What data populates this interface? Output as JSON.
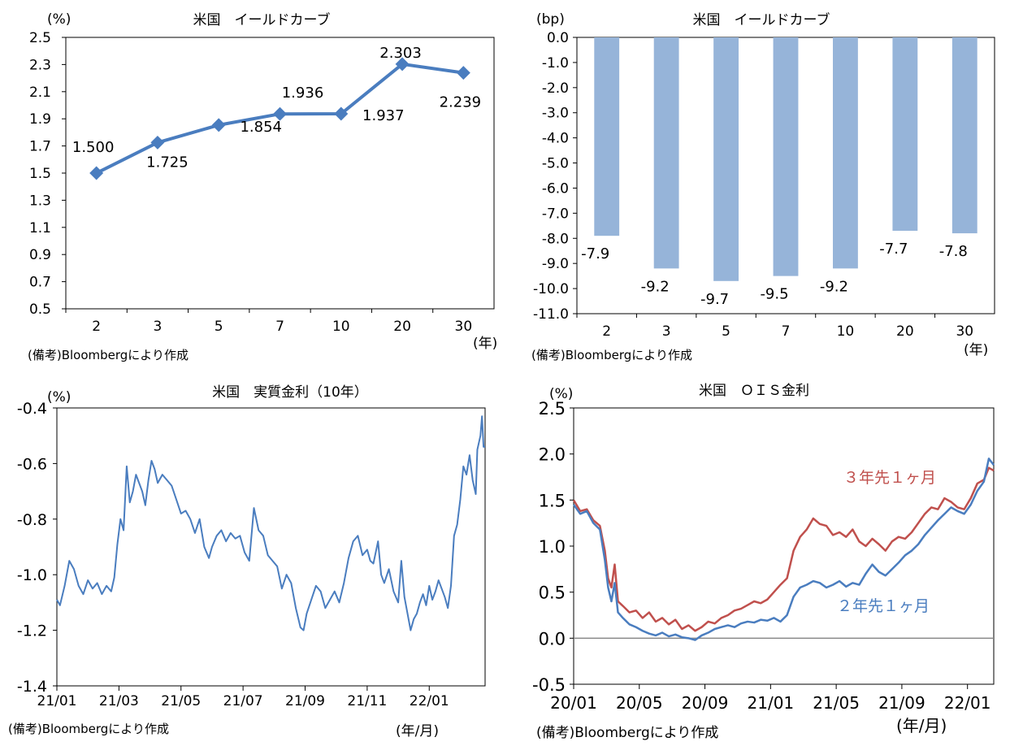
{
  "chart_data": [
    {
      "type": "line",
      "title": "米国　イールドカーブ",
      "ylabel": "(%)",
      "xlabel": "(年)",
      "note": "(備考)Bloombergにより作成",
      "categories": [
        "2",
        "3",
        "5",
        "7",
        "10",
        "20",
        "30"
      ],
      "values": [
        1.5,
        1.725,
        1.854,
        1.936,
        1.937,
        2.303,
        2.239
      ],
      "value_labels": [
        "1.500",
        "1.725",
        "1.854",
        "1.936",
        "1.937",
        "2.303",
        "2.239"
      ],
      "ylim": [
        0.5,
        2.5
      ],
      "yticks": [
        "2.5",
        "2.3",
        "2.1",
        "1.9",
        "1.7",
        "1.5",
        "1.3",
        "1.1",
        "0.9",
        "0.7",
        "0.5"
      ],
      "color": "#4a7dbf"
    },
    {
      "type": "bar",
      "title": "米国　イールドカーブ",
      "ylabel": "(bp)",
      "xlabel": "(年)",
      "note": "(備考)Bloombergにより作成",
      "categories": [
        "2",
        "3",
        "5",
        "7",
        "10",
        "20",
        "30"
      ],
      "values": [
        -7.9,
        -9.2,
        -9.7,
        -9.5,
        -9.2,
        -7.7,
        -7.8
      ],
      "value_labels": [
        "-7.9",
        "-9.2",
        "-9.7",
        "-9.5",
        "-9.2",
        "-7.7",
        "-7.8"
      ],
      "ylim": [
        -11.0,
        0.0
      ],
      "yticks": [
        "0.0",
        "-1.0",
        "-2.0",
        "-3.0",
        "-4.0",
        "-5.0",
        "-6.0",
        "-7.0",
        "-8.0",
        "-9.0",
        "-10.0",
        "-11.0"
      ],
      "color": "#96b4d9"
    },
    {
      "type": "line",
      "title": "米国　実質金利（10年）",
      "ylabel": "(%)",
      "xlabel": "(年/月)",
      "note": "(備考)Bloombergにより作成",
      "ylim": [
        -1.4,
        -0.4
      ],
      "yticks": [
        "-0.4",
        "-0.6",
        "-0.8",
        "-1.0",
        "-1.2",
        "-1.4"
      ],
      "xticks": [
        "21/01",
        "21/03",
        "21/05",
        "21/07",
        "21/09",
        "21/11",
        "22/01"
      ],
      "x_range_months": [
        0,
        13.8
      ],
      "series": [
        {
          "name": "実質金利（10年）",
          "color": "#4a7dbf",
          "points": [
            [
              0,
              -1.09
            ],
            [
              0.1,
              -1.11
            ],
            [
              0.25,
              -1.04
            ],
            [
              0.4,
              -0.95
            ],
            [
              0.55,
              -0.98
            ],
            [
              0.7,
              -1.04
            ],
            [
              0.85,
              -1.07
            ],
            [
              1.0,
              -1.02
            ],
            [
              1.15,
              -1.05
            ],
            [
              1.3,
              -1.03
            ],
            [
              1.45,
              -1.07
            ],
            [
              1.6,
              -1.04
            ],
            [
              1.75,
              -1.06
            ],
            [
              1.85,
              -1.01
            ],
            [
              1.95,
              -0.89
            ],
            [
              2.05,
              -0.8
            ],
            [
              2.15,
              -0.84
            ],
            [
              2.25,
              -0.61
            ],
            [
              2.35,
              -0.74
            ],
            [
              2.45,
              -0.7
            ],
            [
              2.55,
              -0.64
            ],
            [
              2.65,
              -0.67
            ],
            [
              2.75,
              -0.7
            ],
            [
              2.85,
              -0.75
            ],
            [
              2.95,
              -0.66
            ],
            [
              3.05,
              -0.59
            ],
            [
              3.15,
              -0.62
            ],
            [
              3.25,
              -0.67
            ],
            [
              3.4,
              -0.64
            ],
            [
              3.55,
              -0.66
            ],
            [
              3.7,
              -0.68
            ],
            [
              3.85,
              -0.73
            ],
            [
              4.0,
              -0.78
            ],
            [
              4.15,
              -0.77
            ],
            [
              4.3,
              -0.8
            ],
            [
              4.45,
              -0.85
            ],
            [
              4.6,
              -0.8
            ],
            [
              4.75,
              -0.9
            ],
            [
              4.9,
              -0.94
            ],
            [
              5.0,
              -0.9
            ],
            [
              5.15,
              -0.86
            ],
            [
              5.3,
              -0.84
            ],
            [
              5.45,
              -0.88
            ],
            [
              5.6,
              -0.85
            ],
            [
              5.75,
              -0.87
            ],
            [
              5.9,
              -0.86
            ],
            [
              6.05,
              -0.92
            ],
            [
              6.2,
              -0.95
            ],
            [
              6.35,
              -0.76
            ],
            [
              6.5,
              -0.84
            ],
            [
              6.65,
              -0.86
            ],
            [
              6.8,
              -0.93
            ],
            [
              6.95,
              -0.95
            ],
            [
              7.1,
              -0.97
            ],
            [
              7.25,
              -1.05
            ],
            [
              7.4,
              -1.0
            ],
            [
              7.55,
              -1.03
            ],
            [
              7.7,
              -1.12
            ],
            [
              7.85,
              -1.19
            ],
            [
              7.95,
              -1.2
            ],
            [
              8.05,
              -1.14
            ],
            [
              8.2,
              -1.09
            ],
            [
              8.35,
              -1.04
            ],
            [
              8.5,
              -1.06
            ],
            [
              8.65,
              -1.12
            ],
            [
              8.8,
              -1.09
            ],
            [
              8.95,
              -1.06
            ],
            [
              9.1,
              -1.1
            ],
            [
              9.25,
              -1.03
            ],
            [
              9.4,
              -0.94
            ],
            [
              9.55,
              -0.88
            ],
            [
              9.7,
              -0.86
            ],
            [
              9.85,
              -0.93
            ],
            [
              10.0,
              -0.91
            ],
            [
              10.1,
              -0.95
            ],
            [
              10.2,
              -0.96
            ],
            [
              10.35,
              -0.88
            ],
            [
              10.45,
              -1.0
            ],
            [
              10.55,
              -1.03
            ],
            [
              10.7,
              -0.98
            ],
            [
              10.85,
              -1.06
            ],
            [
              11.0,
              -1.1
            ],
            [
              11.1,
              -0.95
            ],
            [
              11.2,
              -1.08
            ],
            [
              11.3,
              -1.14
            ],
            [
              11.4,
              -1.2
            ],
            [
              11.5,
              -1.16
            ],
            [
              11.6,
              -1.14
            ],
            [
              11.7,
              -1.1
            ],
            [
              11.8,
              -1.07
            ],
            [
              11.9,
              -1.11
            ],
            [
              12.0,
              -1.04
            ],
            [
              12.1,
              -1.09
            ],
            [
              12.2,
              -1.06
            ],
            [
              12.3,
              -1.02
            ],
            [
              12.4,
              -1.05
            ],
            [
              12.5,
              -1.08
            ],
            [
              12.6,
              -1.12
            ],
            [
              12.7,
              -1.04
            ],
            [
              12.8,
              -0.86
            ],
            [
              12.9,
              -0.82
            ],
            [
              13.0,
              -0.73
            ],
            [
              13.1,
              -0.61
            ],
            [
              13.2,
              -0.64
            ],
            [
              13.3,
              -0.57
            ],
            [
              13.4,
              -0.66
            ],
            [
              13.5,
              -0.71
            ],
            [
              13.55,
              -0.55
            ],
            [
              13.65,
              -0.5
            ],
            [
              13.7,
              -0.43
            ],
            [
              13.75,
              -0.54
            ],
            [
              13.8,
              -0.54
            ]
          ]
        }
      ]
    },
    {
      "type": "line",
      "title": "米国　ＯＩＳ金利",
      "ylabel": "(%)",
      "xlabel": "(年/月)",
      "note": "(備考)Bloombergにより作成",
      "ylim": [
        -0.5,
        2.5
      ],
      "yticks": [
        "2.5",
        "2.0",
        "1.5",
        "1.0",
        "0.5",
        "0.0",
        "-0.5"
      ],
      "xticks": [
        "20/01",
        "20/05",
        "20/09",
        "21/01",
        "21/05",
        "21/09",
        "22/01"
      ],
      "x_range_months": [
        0,
        25.6
      ],
      "series": [
        {
          "name": "３年先１ヶ月",
          "color": "#c0504d",
          "points": [
            [
              0,
              1.5
            ],
            [
              0.4,
              1.38
            ],
            [
              0.8,
              1.4
            ],
            [
              1.2,
              1.28
            ],
            [
              1.6,
              1.22
            ],
            [
              1.9,
              0.95
            ],
            [
              2.1,
              0.65
            ],
            [
              2.3,
              0.55
            ],
            [
              2.5,
              0.8
            ],
            [
              2.7,
              0.4
            ],
            [
              3.0,
              0.35
            ],
            [
              3.4,
              0.28
            ],
            [
              3.8,
              0.3
            ],
            [
              4.2,
              0.22
            ],
            [
              4.6,
              0.28
            ],
            [
              5.0,
              0.18
            ],
            [
              5.4,
              0.22
            ],
            [
              5.8,
              0.15
            ],
            [
              6.2,
              0.2
            ],
            [
              6.6,
              0.1
            ],
            [
              7.0,
              0.14
            ],
            [
              7.4,
              0.08
            ],
            [
              7.8,
              0.12
            ],
            [
              8.2,
              0.18
            ],
            [
              8.6,
              0.16
            ],
            [
              9.0,
              0.22
            ],
            [
              9.4,
              0.25
            ],
            [
              9.8,
              0.3
            ],
            [
              10.2,
              0.32
            ],
            [
              10.6,
              0.36
            ],
            [
              11.0,
              0.4
            ],
            [
              11.4,
              0.38
            ],
            [
              11.8,
              0.42
            ],
            [
              12.2,
              0.5
            ],
            [
              12.6,
              0.58
            ],
            [
              13.0,
              0.65
            ],
            [
              13.4,
              0.95
            ],
            [
              13.8,
              1.1
            ],
            [
              14.2,
              1.18
            ],
            [
              14.6,
              1.3
            ],
            [
              15.0,
              1.24
            ],
            [
              15.4,
              1.22
            ],
            [
              15.8,
              1.12
            ],
            [
              16.2,
              1.15
            ],
            [
              16.6,
              1.1
            ],
            [
              17.0,
              1.18
            ],
            [
              17.4,
              1.05
            ],
            [
              17.8,
              1.0
            ],
            [
              18.2,
              1.08
            ],
            [
              18.6,
              1.02
            ],
            [
              19.0,
              0.95
            ],
            [
              19.4,
              1.05
            ],
            [
              19.8,
              1.1
            ],
            [
              20.2,
              1.08
            ],
            [
              20.6,
              1.15
            ],
            [
              21.0,
              1.25
            ],
            [
              21.4,
              1.35
            ],
            [
              21.8,
              1.42
            ],
            [
              22.2,
              1.4
            ],
            [
              22.6,
              1.52
            ],
            [
              23.0,
              1.48
            ],
            [
              23.4,
              1.42
            ],
            [
              23.8,
              1.4
            ],
            [
              24.2,
              1.52
            ],
            [
              24.6,
              1.68
            ],
            [
              25.0,
              1.72
            ],
            [
              25.3,
              1.85
            ],
            [
              25.6,
              1.82
            ]
          ]
        },
        {
          "name": "２年先１ヶ月",
          "color": "#4a7dbf",
          "points": [
            [
              0,
              1.45
            ],
            [
              0.4,
              1.35
            ],
            [
              0.8,
              1.38
            ],
            [
              1.2,
              1.25
            ],
            [
              1.6,
              1.18
            ],
            [
              1.9,
              0.85
            ],
            [
              2.1,
              0.55
            ],
            [
              2.3,
              0.4
            ],
            [
              2.5,
              0.6
            ],
            [
              2.7,
              0.28
            ],
            [
              3.0,
              0.22
            ],
            [
              3.4,
              0.15
            ],
            [
              3.8,
              0.12
            ],
            [
              4.2,
              0.08
            ],
            [
              4.6,
              0.05
            ],
            [
              5.0,
              0.03
            ],
            [
              5.4,
              0.06
            ],
            [
              5.8,
              0.02
            ],
            [
              6.2,
              0.04
            ],
            [
              6.6,
              0.01
            ],
            [
              7.0,
              0.0
            ],
            [
              7.4,
              -0.02
            ],
            [
              7.8,
              0.03
            ],
            [
              8.2,
              0.06
            ],
            [
              8.6,
              0.1
            ],
            [
              9.0,
              0.12
            ],
            [
              9.4,
              0.14
            ],
            [
              9.8,
              0.12
            ],
            [
              10.2,
              0.16
            ],
            [
              10.6,
              0.18
            ],
            [
              11.0,
              0.17
            ],
            [
              11.4,
              0.2
            ],
            [
              11.8,
              0.19
            ],
            [
              12.2,
              0.22
            ],
            [
              12.6,
              0.18
            ],
            [
              13.0,
              0.25
            ],
            [
              13.4,
              0.45
            ],
            [
              13.8,
              0.55
            ],
            [
              14.2,
              0.58
            ],
            [
              14.6,
              0.62
            ],
            [
              15.0,
              0.6
            ],
            [
              15.4,
              0.55
            ],
            [
              15.8,
              0.58
            ],
            [
              16.2,
              0.62
            ],
            [
              16.6,
              0.56
            ],
            [
              17.0,
              0.6
            ],
            [
              17.4,
              0.58
            ],
            [
              17.8,
              0.7
            ],
            [
              18.2,
              0.8
            ],
            [
              18.6,
              0.72
            ],
            [
              19.0,
              0.68
            ],
            [
              19.4,
              0.75
            ],
            [
              19.8,
              0.82
            ],
            [
              20.2,
              0.9
            ],
            [
              20.6,
              0.95
            ],
            [
              21.0,
              1.02
            ],
            [
              21.4,
              1.12
            ],
            [
              21.8,
              1.2
            ],
            [
              22.2,
              1.28
            ],
            [
              22.6,
              1.35
            ],
            [
              23.0,
              1.42
            ],
            [
              23.4,
              1.38
            ],
            [
              23.8,
              1.35
            ],
            [
              24.2,
              1.45
            ],
            [
              24.6,
              1.6
            ],
            [
              25.0,
              1.7
            ],
            [
              25.3,
              1.95
            ],
            [
              25.6,
              1.88
            ]
          ]
        }
      ]
    }
  ]
}
